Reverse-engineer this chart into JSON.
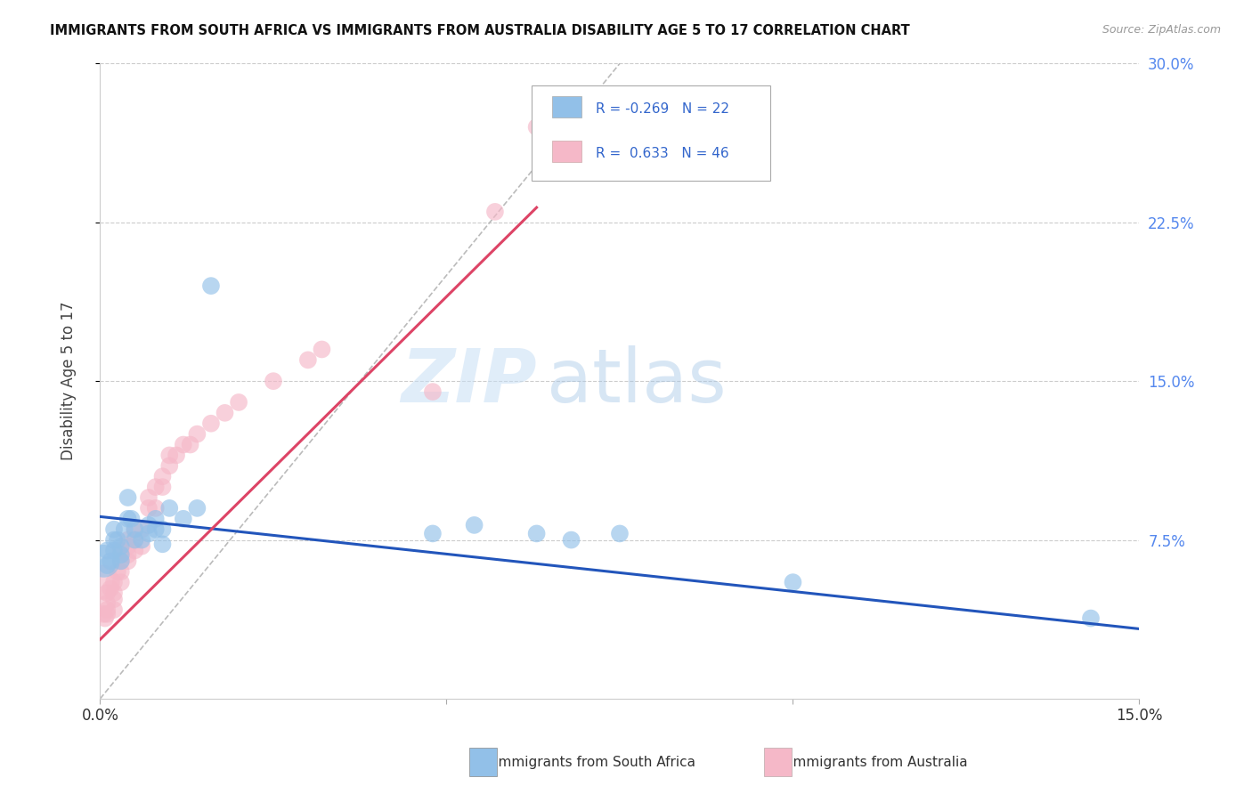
{
  "title": "IMMIGRANTS FROM SOUTH AFRICA VS IMMIGRANTS FROM AUSTRALIA DISABILITY AGE 5 TO 17 CORRELATION CHART",
  "source": "Source: ZipAtlas.com",
  "ylabel": "Disability Age 5 to 17",
  "xmin": 0.0,
  "xmax": 0.15,
  "ymin": 0.0,
  "ymax": 0.3,
  "grid_color": "#cccccc",
  "background_color": "#ffffff",
  "watermark_zip": "ZIP",
  "watermark_atlas": "atlas",
  "color_blue": "#92c0e8",
  "color_pink": "#f5b8c8",
  "color_blue_line": "#2255bb",
  "color_pink_line": "#dd4466",
  "color_diag_line": "#bbbbbb",
  "blue_trend_x0": 0.0,
  "blue_trend_y0": 0.086,
  "blue_trend_x1": 0.15,
  "blue_trend_y1": 0.033,
  "pink_trend_x0": 0.0,
  "pink_trend_y0": 0.028,
  "pink_trend_x1": 0.063,
  "pink_trend_y1": 0.232,
  "south_africa_x": [
    0.0005,
    0.001,
    0.001,
    0.0015,
    0.002,
    0.002,
    0.002,
    0.0025,
    0.003,
    0.003,
    0.003,
    0.0035,
    0.004,
    0.004,
    0.0045,
    0.005,
    0.005,
    0.006,
    0.007,
    0.007,
    0.008,
    0.008,
    0.009,
    0.009,
    0.01,
    0.012,
    0.014,
    0.016,
    0.048,
    0.054,
    0.063,
    0.068,
    0.075,
    0.1,
    0.143
  ],
  "south_africa_y": [
    0.065,
    0.063,
    0.07,
    0.065,
    0.07,
    0.075,
    0.08,
    0.075,
    0.065,
    0.068,
    0.072,
    0.08,
    0.085,
    0.095,
    0.085,
    0.075,
    0.08,
    0.075,
    0.078,
    0.082,
    0.08,
    0.085,
    0.073,
    0.08,
    0.09,
    0.085,
    0.09,
    0.195,
    0.078,
    0.082,
    0.078,
    0.075,
    0.078,
    0.055,
    0.038
  ],
  "south_africa_size": [
    700,
    200,
    200,
    200,
    200,
    200,
    200,
    200,
    200,
    200,
    200,
    200,
    200,
    200,
    200,
    200,
    200,
    200,
    200,
    200,
    200,
    200,
    200,
    200,
    200,
    200,
    200,
    200,
    200,
    200,
    200,
    200,
    200,
    200,
    200
  ],
  "australia_x": [
    0.0003,
    0.0005,
    0.0007,
    0.001,
    0.001,
    0.001,
    0.001,
    0.0015,
    0.002,
    0.002,
    0.002,
    0.002,
    0.0025,
    0.003,
    0.003,
    0.003,
    0.003,
    0.004,
    0.004,
    0.004,
    0.004,
    0.005,
    0.005,
    0.005,
    0.006,
    0.006,
    0.007,
    0.007,
    0.008,
    0.008,
    0.009,
    0.009,
    0.01,
    0.01,
    0.011,
    0.012,
    0.013,
    0.014,
    0.016,
    0.018,
    0.02,
    0.025,
    0.03,
    0.032,
    0.048,
    0.057,
    0.063
  ],
  "australia_y": [
    0.055,
    0.04,
    0.038,
    0.04,
    0.042,
    0.045,
    0.05,
    0.052,
    0.042,
    0.047,
    0.05,
    0.055,
    0.06,
    0.055,
    0.06,
    0.065,
    0.07,
    0.065,
    0.068,
    0.072,
    0.075,
    0.07,
    0.075,
    0.08,
    0.072,
    0.08,
    0.09,
    0.095,
    0.09,
    0.1,
    0.1,
    0.105,
    0.11,
    0.115,
    0.115,
    0.12,
    0.12,
    0.125,
    0.13,
    0.135,
    0.14,
    0.15,
    0.16,
    0.165,
    0.145,
    0.23,
    0.27
  ],
  "australia_size": [
    800,
    200,
    200,
    200,
    200,
    200,
    200,
    200,
    200,
    200,
    200,
    200,
    200,
    200,
    200,
    200,
    200,
    200,
    200,
    200,
    200,
    200,
    200,
    200,
    200,
    200,
    200,
    200,
    200,
    200,
    200,
    200,
    200,
    200,
    200,
    200,
    200,
    200,
    200,
    200,
    200,
    200,
    200,
    200,
    200,
    200,
    200
  ]
}
